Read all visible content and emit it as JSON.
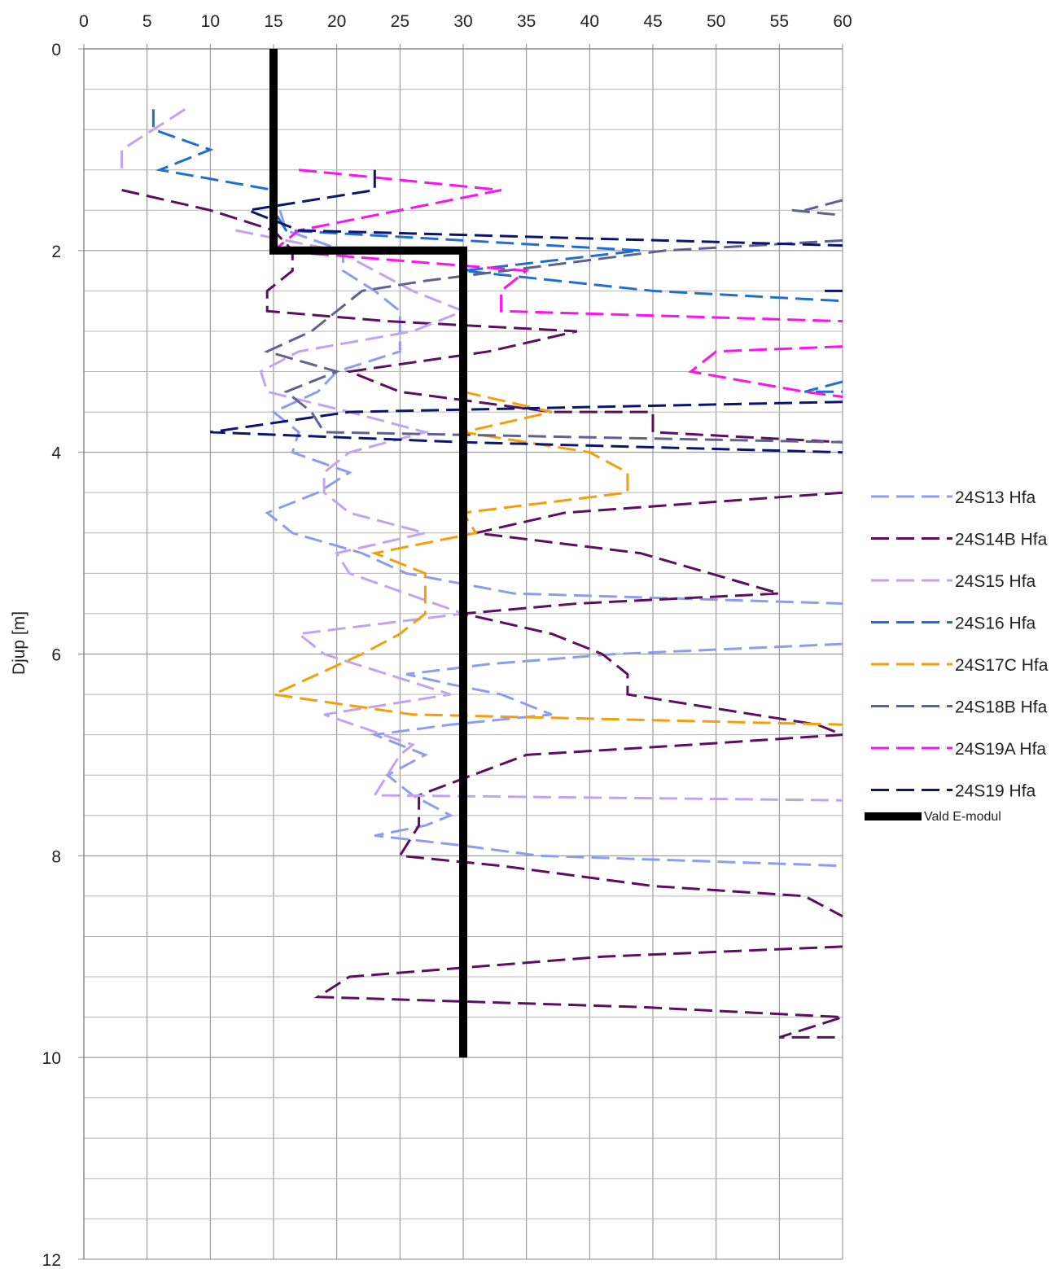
{
  "chart_data": {
    "type": "line",
    "title": "",
    "xlabel": "",
    "ylabel": "Djup [m]",
    "xlim": [
      0,
      60
    ],
    "ylim": [
      0,
      12
    ],
    "y_inverted": true,
    "x_axis_position": "top",
    "x_ticks": [
      "0",
      "5",
      "10",
      "15",
      "20",
      "25",
      "30",
      "35",
      "40",
      "45",
      "50",
      "55",
      "60"
    ],
    "y_ticks": [
      "0",
      "2",
      "4",
      "6",
      "8",
      "10",
      "12"
    ],
    "grid": true,
    "legend_position": "right",
    "series": [
      {
        "name": "24S13 Hfa",
        "color": "#8e9cf0",
        "style": "dashed",
        "points": [
          [
            15.5,
            1.6
          ],
          [
            16,
            1.8
          ],
          [
            20.5,
            2.0
          ],
          [
            20.5,
            2.2
          ],
          [
            23,
            2.4
          ],
          [
            25,
            2.6
          ],
          [
            25,
            3.0
          ],
          [
            20,
            3.2
          ],
          [
            18.5,
            3.4
          ],
          [
            15,
            3.6
          ],
          [
            17,
            3.8
          ],
          [
            16.5,
            4.0
          ],
          [
            21,
            4.2
          ],
          [
            18.5,
            4.4
          ],
          [
            14.5,
            4.6
          ],
          [
            16.5,
            4.8
          ],
          [
            22,
            5.0
          ],
          [
            25.5,
            5.2
          ],
          [
            34,
            5.4
          ],
          [
            60,
            5.5
          ],
          [
            null,
            null
          ],
          [
            60,
            5.9
          ],
          [
            42,
            6.0
          ],
          [
            32,
            6.1
          ],
          [
            25.5,
            6.2
          ],
          [
            29,
            6.3
          ],
          [
            33,
            6.4
          ],
          [
            37,
            6.6
          ],
          [
            29,
            6.7
          ],
          [
            23,
            6.8
          ],
          [
            27,
            7.0
          ],
          [
            24,
            7.2
          ],
          [
            26,
            7.4
          ],
          [
            29,
            7.6
          ],
          [
            27,
            7.7
          ],
          [
            23,
            7.8
          ],
          [
            30,
            7.9
          ],
          [
            36,
            8.0
          ],
          [
            60,
            8.1
          ]
        ]
      },
      {
        "name": "24S14B Hfa",
        "color": "#5c0f5f",
        "style": "dashed",
        "points": [
          [
            3,
            1.4
          ],
          [
            10,
            1.6
          ],
          [
            15,
            1.8
          ],
          [
            16.5,
            2.0
          ],
          [
            16.5,
            2.2
          ],
          [
            14.5,
            2.4
          ],
          [
            14.5,
            2.6
          ],
          [
            24,
            2.7
          ],
          [
            39,
            2.8
          ],
          [
            32,
            3.0
          ],
          [
            21,
            3.2
          ],
          [
            25,
            3.4
          ],
          [
            37,
            3.6
          ],
          [
            45,
            3.6
          ],
          [
            45,
            3.8
          ],
          [
            60,
            3.9
          ],
          [
            null,
            null
          ],
          [
            60,
            4.4
          ],
          [
            38,
            4.6
          ],
          [
            31,
            4.8
          ],
          [
            44,
            5.0
          ],
          [
            55,
            5.4
          ],
          [
            39,
            5.5
          ],
          [
            30,
            5.6
          ],
          [
            37,
            5.8
          ],
          [
            41,
            6.0
          ],
          [
            43,
            6.2
          ],
          [
            43,
            6.4
          ],
          [
            58,
            6.7
          ],
          [
            60,
            6.8
          ],
          [
            48,
            6.9
          ],
          [
            35,
            7.0
          ],
          [
            26.5,
            7.4
          ],
          [
            26.5,
            7.7
          ],
          [
            25,
            8.0
          ],
          [
            33,
            8.1
          ],
          [
            45,
            8.3
          ],
          [
            57,
            8.4
          ],
          [
            60,
            8.6
          ],
          [
            null,
            null
          ],
          [
            60,
            8.9
          ],
          [
            41,
            9.0
          ],
          [
            21,
            9.2
          ],
          [
            18.5,
            9.4
          ],
          [
            44,
            9.5
          ],
          [
            60,
            9.6
          ],
          [
            55,
            9.8
          ],
          [
            60,
            9.8
          ]
        ]
      },
      {
        "name": "24S15 Hfa",
        "color": "#c2a3f0",
        "style": "dashed",
        "points": [
          [
            8,
            0.6
          ],
          [
            3,
            1.0
          ],
          [
            3,
            1.2
          ],
          [
            null,
            null
          ],
          [
            12,
            1.8
          ],
          [
            20,
            2.0
          ],
          [
            23,
            2.2
          ],
          [
            26,
            2.4
          ],
          [
            30,
            2.6
          ],
          [
            26,
            2.8
          ],
          [
            17,
            3.0
          ],
          [
            14,
            3.2
          ],
          [
            14.5,
            3.4
          ],
          [
            21,
            3.6
          ],
          [
            27,
            3.8
          ],
          [
            21,
            4.0
          ],
          [
            19,
            4.2
          ],
          [
            19,
            4.4
          ],
          [
            21,
            4.6
          ],
          [
            27,
            4.8
          ],
          [
            20,
            5.0
          ],
          [
            21,
            5.2
          ],
          [
            30,
            5.6
          ],
          [
            17,
            5.8
          ],
          [
            19,
            6.0
          ],
          [
            29,
            6.4
          ],
          [
            19,
            6.6
          ],
          [
            26,
            6.9
          ],
          [
            25,
            7.0
          ],
          [
            23,
            7.4
          ],
          [
            60,
            7.45
          ]
        ]
      },
      {
        "name": "24S16 Hfa",
        "color": "#1f6fd0",
        "style": "dashed",
        "points": [
          [
            5.5,
            0.6
          ],
          [
            5.5,
            0.8
          ],
          [
            10,
            1.0
          ],
          [
            6,
            1.2
          ],
          [
            15,
            1.4
          ],
          [
            15,
            1.6
          ],
          [
            16,
            1.8
          ],
          [
            44,
            2.0
          ],
          [
            30,
            2.2
          ],
          [
            45,
            2.4
          ],
          [
            60,
            2.5
          ],
          [
            null,
            null
          ],
          [
            60,
            3.3
          ],
          [
            57,
            3.4
          ],
          [
            60,
            3.4
          ]
        ]
      },
      {
        "name": "24S17C Hfa",
        "color": "#f59e0b",
        "style": "dashed",
        "points": [
          [
            30,
            3.4
          ],
          [
            37,
            3.6
          ],
          [
            30,
            3.8
          ],
          [
            40,
            4.0
          ],
          [
            43,
            4.2
          ],
          [
            43,
            4.4
          ],
          [
            30,
            4.6
          ],
          [
            31,
            4.8
          ],
          [
            23,
            5.0
          ],
          [
            27,
            5.2
          ],
          [
            27,
            5.6
          ],
          [
            25,
            5.8
          ],
          [
            22,
            6.0
          ],
          [
            15,
            6.4
          ],
          [
            26,
            6.6
          ],
          [
            60,
            6.7
          ]
        ]
      },
      {
        "name": "24S18B Hfa",
        "color": "#5f628f",
        "style": "dashed",
        "points": [
          [
            56,
            1.6
          ],
          [
            60,
            1.65
          ],
          [
            null,
            null
          ],
          [
            60,
            1.5
          ],
          [
            57,
            1.6
          ],
          [
            null,
            null
          ],
          [
            60,
            1.9
          ],
          [
            46,
            2.0
          ],
          [
            27,
            2.3
          ],
          [
            22,
            2.4
          ],
          [
            18,
            2.8
          ],
          [
            14.5,
            3.0
          ],
          [
            20,
            3.2
          ],
          [
            16,
            3.4
          ],
          [
            18,
            3.6
          ],
          [
            19,
            3.8
          ],
          [
            60,
            3.9
          ]
        ]
      },
      {
        "name": "24S19A Hfa",
        "color": "#ff10f0",
        "style": "dashed",
        "points": [
          [
            17,
            1.2
          ],
          [
            33,
            1.4
          ],
          [
            17,
            1.8
          ],
          [
            15,
            2.0
          ],
          [
            35,
            2.2
          ],
          [
            33,
            2.4
          ],
          [
            33,
            2.6
          ],
          [
            60,
            2.7
          ],
          [
            null,
            null
          ],
          [
            60,
            2.95
          ],
          [
            50,
            3.0
          ],
          [
            48,
            3.2
          ],
          [
            57,
            3.4
          ],
          [
            60,
            3.45
          ]
        ]
      },
      {
        "name": "24S19 Hfa",
        "color": "#0b1470",
        "style": "dashed",
        "points": [
          [
            23,
            1.2
          ],
          [
            23,
            1.4
          ],
          [
            13,
            1.6
          ],
          [
            17,
            1.8
          ],
          [
            60,
            1.95
          ],
          [
            null,
            null
          ],
          [
            60,
            2.4
          ],
          [
            58,
            2.4
          ],
          [
            null,
            null
          ],
          [
            60,
            3.5
          ],
          [
            21,
            3.6
          ],
          [
            10,
            3.8
          ],
          [
            30,
            3.9
          ],
          [
            60,
            4.0
          ]
        ]
      },
      {
        "name": "Vald E-modul",
        "color": "#000000",
        "style": "solid",
        "points": [
          [
            15,
            0
          ],
          [
            15,
            2
          ],
          [
            30,
            2
          ],
          [
            30,
            10
          ]
        ]
      }
    ]
  }
}
